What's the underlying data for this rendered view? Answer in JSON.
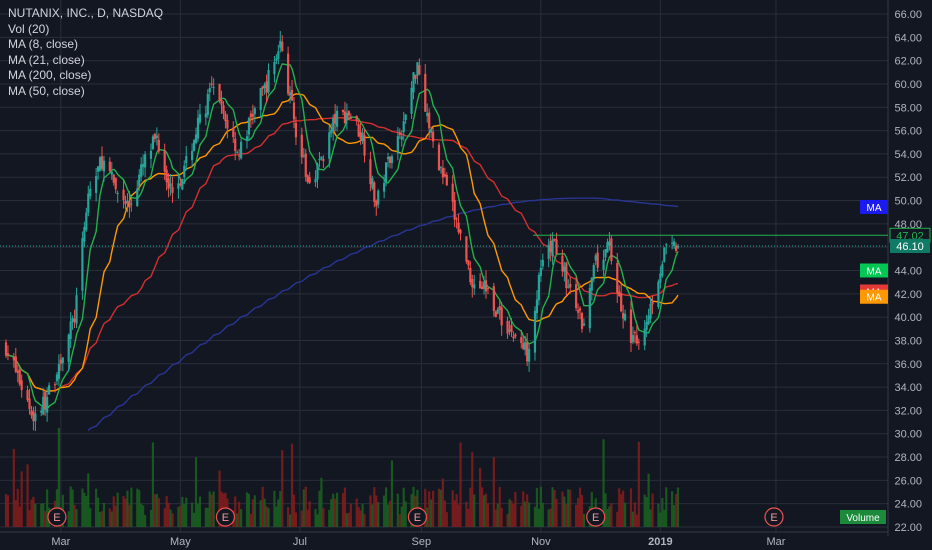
{
  "chart_data": {
    "type": "candlestick",
    "title": "NUTANIX, INC., D, NASDAQ",
    "indicators": [
      "Vol (20)",
      "MA (8, close)",
      "MA (21, close)",
      "MA (200, close)",
      "MA (50, close)"
    ],
    "ylim": [
      22,
      66.5
    ],
    "y_ticks": [
      "66.00",
      "64.00",
      "62.00",
      "60.00",
      "58.00",
      "56.00",
      "54.00",
      "52.00",
      "50.00",
      "48.00",
      "46.00",
      "44.00",
      "42.00",
      "40.00",
      "38.00",
      "36.00",
      "34.00",
      "32.00",
      "30.00",
      "28.00",
      "26.00",
      "24.00",
      "22.00"
    ],
    "x_ticks": [
      "Mar",
      "May",
      "Jul",
      "Sep",
      "Nov",
      "2019",
      "Mar"
    ],
    "price_path": [
      [
        "2018-02-01",
        37.5
      ],
      [
        "2018-02-08",
        34.5
      ],
      [
        "2018-02-15",
        31.5
      ],
      [
        "2018-02-22",
        33.0
      ],
      [
        "2018-03-01",
        36.5
      ],
      [
        "2018-03-08",
        40.0
      ],
      [
        "2018-03-15",
        50.5
      ],
      [
        "2018-03-22",
        53.5
      ],
      [
        "2018-03-29",
        51.0
      ],
      [
        "2018-04-05",
        49.5
      ],
      [
        "2018-04-12",
        53.0
      ],
      [
        "2018-04-19",
        55.5
      ],
      [
        "2018-04-26",
        51.0
      ],
      [
        "2018-05-03",
        52.5
      ],
      [
        "2018-05-10",
        56.5
      ],
      [
        "2018-05-17",
        59.5
      ],
      [
        "2018-05-24",
        57.0
      ],
      [
        "2018-05-31",
        54.0
      ],
      [
        "2018-06-07",
        57.5
      ],
      [
        "2018-06-14",
        60.0
      ],
      [
        "2018-06-21",
        63.5
      ],
      [
        "2018-06-28",
        57.0
      ],
      [
        "2018-07-05",
        51.5
      ],
      [
        "2018-07-12",
        53.5
      ],
      [
        "2018-07-19",
        57.0
      ],
      [
        "2018-07-26",
        57.5
      ],
      [
        "2018-08-02",
        55.5
      ],
      [
        "2018-08-09",
        49.5
      ],
      [
        "2018-08-16",
        54.0
      ],
      [
        "2018-08-23",
        56.5
      ],
      [
        "2018-08-30",
        62.0
      ],
      [
        "2018-09-06",
        55.5
      ],
      [
        "2018-09-13",
        51.5
      ],
      [
        "2018-09-20",
        47.5
      ],
      [
        "2018-09-27",
        43.0
      ],
      [
        "2018-10-04",
        42.5
      ],
      [
        "2018-10-11",
        40.0
      ],
      [
        "2018-10-18",
        38.5
      ],
      [
        "2018-10-25",
        37.0
      ],
      [
        "2018-11-01",
        44.0
      ],
      [
        "2018-11-08",
        46.5
      ],
      [
        "2018-11-15",
        42.5
      ],
      [
        "2018-11-22",
        39.5
      ],
      [
        "2018-11-29",
        44.5
      ],
      [
        "2018-12-06",
        46.0
      ],
      [
        "2018-12-13",
        40.0
      ],
      [
        "2018-12-20",
        37.5
      ],
      [
        "2018-12-27",
        41.0
      ],
      [
        "2019-01-03",
        45.5
      ],
      [
        "2019-01-10",
        46.1
      ]
    ],
    "series": [
      {
        "name": "MA (8, close)",
        "color": "#22b14c"
      },
      {
        "name": "MA (21, close)",
        "color": "#ff9800"
      },
      {
        "name": "MA (50, close)",
        "color": "#d32f2f"
      },
      {
        "name": "MA (200, close)",
        "color": "#1a237e"
      }
    ],
    "horizontal_line": {
      "value": 47.02,
      "label": "47.02",
      "color": "#22b14c"
    },
    "last_price": {
      "value": 46.1,
      "label": "46.10"
    },
    "ma_tags": [
      {
        "label": "MA",
        "value": 49.45,
        "color": "#1b1bf0"
      },
      {
        "label": "MA",
        "value": 44.0,
        "color": "#00c853"
      },
      {
        "label": "MA",
        "value": 42.2,
        "color": "#e53935"
      },
      {
        "label": "MA",
        "value": 41.75,
        "color": "#ff9800"
      }
    ],
    "earnings_markers": [
      {
        "label": "E",
        "date": "2018-02-27"
      },
      {
        "label": "E",
        "date": "2018-05-24"
      },
      {
        "label": "E",
        "date": "2018-08-30"
      },
      {
        "label": "E",
        "date": "2018-11-29"
      },
      {
        "label": "E",
        "date": "2019-02-28"
      }
    ],
    "volume_label": "Volume",
    "colors": {
      "up": "#26a69a",
      "down": "#ef5350",
      "background": "#131722",
      "grid": "#2a2e39"
    }
  }
}
